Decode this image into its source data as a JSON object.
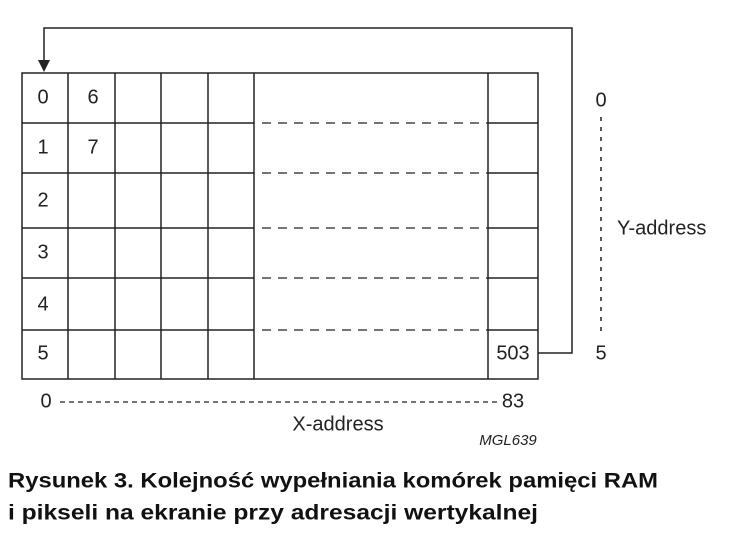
{
  "grid": {
    "row_labels": [
      "0",
      "1",
      "2",
      "3",
      "4",
      "5"
    ],
    "column1": [
      "6",
      "7"
    ],
    "last_cell": "503"
  },
  "y_axis": {
    "start": "0",
    "end": "5",
    "label": "Y-address"
  },
  "x_axis": {
    "start": "0",
    "end": "83",
    "label": "X-address"
  },
  "code": "MGL639",
  "caption": {
    "line1": "Rysunek 3. Kolejność wypełniania komórek pamięci RAM",
    "line2": "i pikseli na ekranie przy adresacji wertykalnej"
  }
}
